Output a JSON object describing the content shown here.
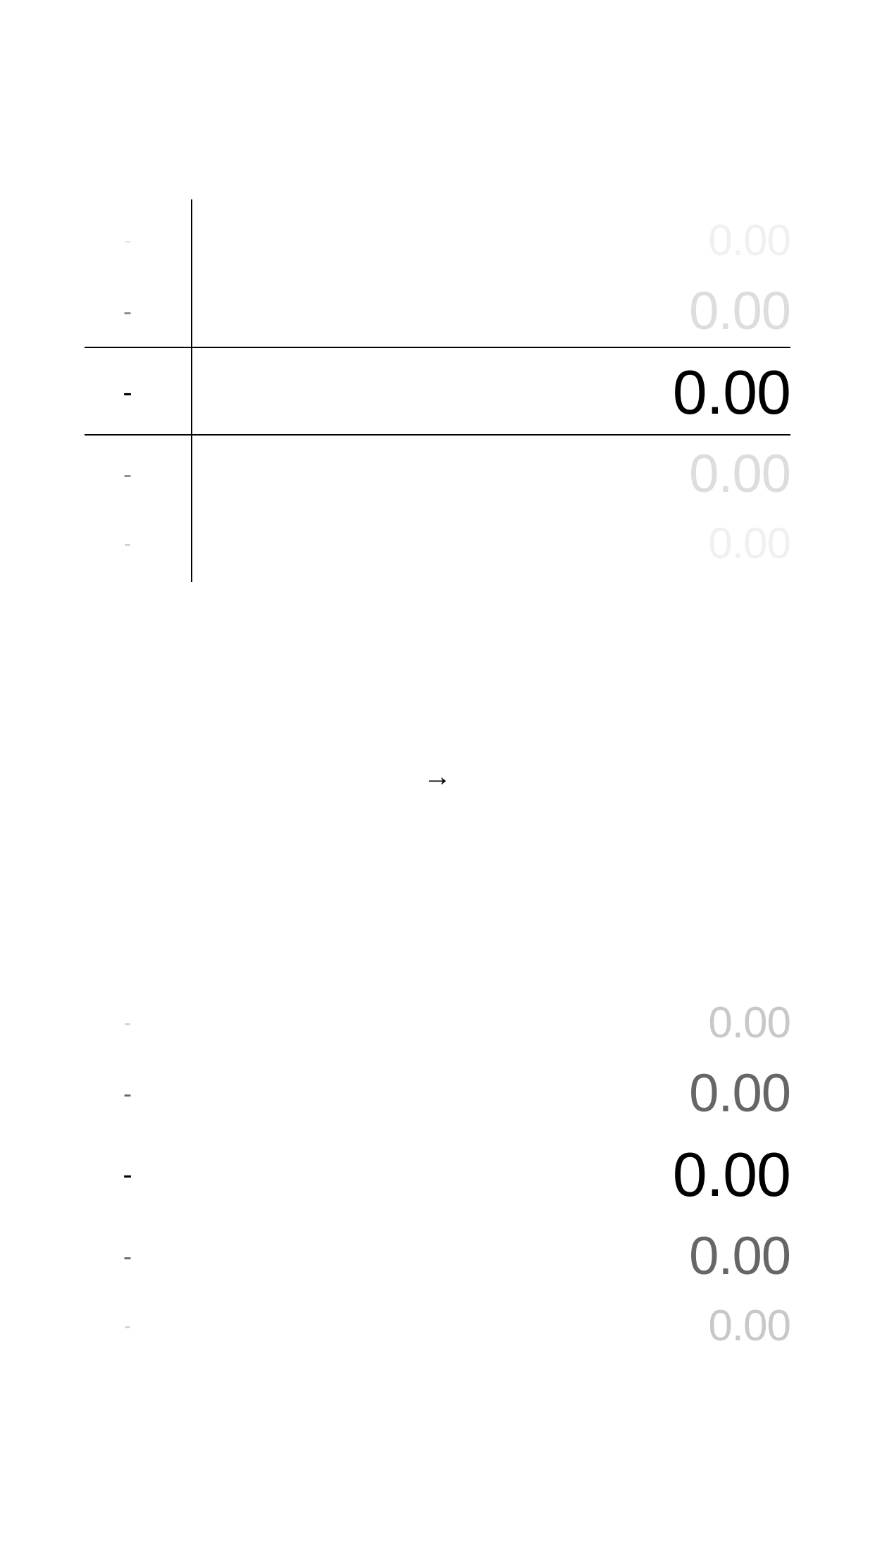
{
  "top_picker": {
    "rows": [
      {
        "label": "-",
        "value": "0.00"
      },
      {
        "label": "-",
        "value": "0.00"
      },
      {
        "label": "-",
        "value": "0.00"
      },
      {
        "label": "-",
        "value": "0.00"
      },
      {
        "label": "-",
        "value": "0.00"
      }
    ],
    "selected_index": 2
  },
  "arrow": {
    "glyph": "→",
    "icon": "right-arrow-icon"
  },
  "bottom_picker": {
    "rows": [
      {
        "label": "-",
        "value": "0.00"
      },
      {
        "label": "-",
        "value": "0.00"
      },
      {
        "label": "-",
        "value": "0.00"
      },
      {
        "label": "-",
        "value": "0.00"
      },
      {
        "label": "-",
        "value": "0.00"
      }
    ],
    "selected_index": 2
  },
  "colors": {
    "selected": "#000000",
    "near_top": "#dddddd",
    "far_top": "#f0f0f0",
    "near_bottom": "#666666",
    "far_bottom": "#c8c8c8"
  }
}
